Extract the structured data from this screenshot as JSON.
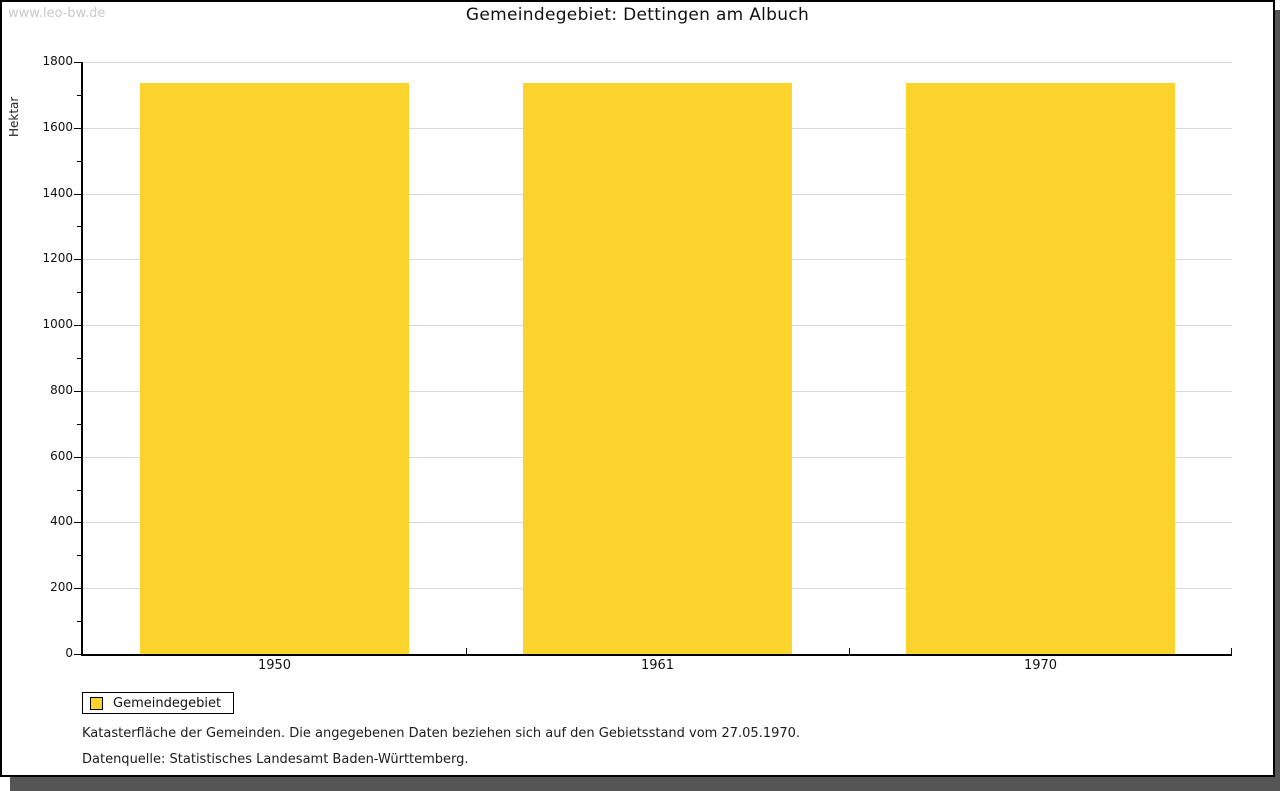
{
  "watermark": "www.leo-bw.de",
  "header": {
    "title": "Gemeindegebiet: Dettingen am Albuch"
  },
  "legend": {
    "label": "Gemeindegebiet"
  },
  "notes": {
    "line1": "Katasterfläche der Gemeinden. Die angegebenen Daten beziehen sich auf den Gebietsstand vom 27.05.1970.",
    "line2": "Datenquelle: Statistisches Landesamt Baden-Württemberg."
  },
  "colors": {
    "bar": "#FCD32D",
    "gridline": "#D9D9D9",
    "axis": "#000000",
    "frame_shadow": "#555555",
    "watermark": "#C9C9C9"
  },
  "chart_data": {
    "type": "bar",
    "title": "Gemeindegebiet: Dettingen am Albuch",
    "categories": [
      "1950",
      "1961",
      "1970"
    ],
    "series": [
      {
        "name": "Gemeindegebiet",
        "values": [
          1735,
          1735,
          1735
        ]
      }
    ],
    "xlabel": "",
    "ylabel": "Hektar",
    "ylim": [
      0,
      1800
    ],
    "ytick_step": 200,
    "yminor_step": 100,
    "grid": true,
    "legend_position": "bottom-left",
    "bar_color": "#FCD32D",
    "bar_width_ratio": 0.7
  }
}
